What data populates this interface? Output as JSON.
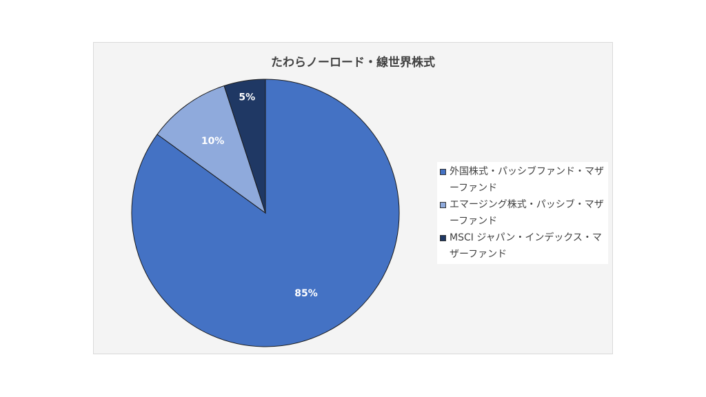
{
  "chart_data": {
    "type": "pie",
    "title": "たわらノーロード・線世界株式",
    "categories": [
      "外国株式・パッシブファンド・マザーファンド",
      "エマージング株式・パッシブ・マザーファンド",
      "MSCI ジャパン・インデックス・マザーファンド"
    ],
    "values": [
      85,
      10,
      5
    ],
    "data_labels": [
      "85%",
      "10%",
      "5%"
    ],
    "colors": [
      "#4472c4",
      "#8faadc",
      "#1f3864"
    ],
    "legend_position": "right",
    "start_angle": "12 o'clock, clockwise"
  }
}
